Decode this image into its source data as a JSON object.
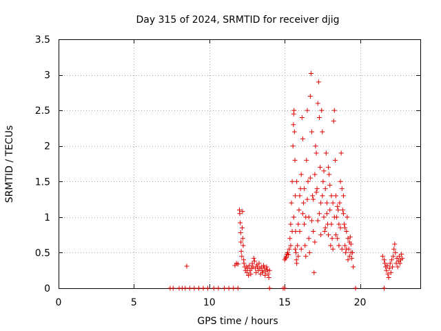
{
  "chart_data": {
    "type": "scatter",
    "title": "Day 315 of 2024, SRMTID for receiver djig",
    "xlabel": "GPS time / hours",
    "ylabel": "SRMTID / TECUs",
    "xlim": [
      0,
      24
    ],
    "ylim": [
      0,
      3.5
    ],
    "xticks": [
      0,
      5,
      10,
      15,
      20
    ],
    "yticks": [
      0,
      0.5,
      1,
      1.5,
      2,
      2.5,
      3,
      3.5
    ],
    "xtick_labels": [
      "0",
      "5",
      "10",
      "15",
      "20"
    ],
    "ytick_labels": [
      "0",
      "0.5",
      "1",
      "1.5",
      "2",
      "2.5",
      "3",
      "3.5"
    ],
    "grid": true,
    "marker": "+",
    "color": "#e00000",
    "series": [
      {
        "name": "SRMTID",
        "points": [
          [
            7.4,
            0
          ],
          [
            7.6,
            0
          ],
          [
            8.0,
            0
          ],
          [
            8.2,
            0
          ],
          [
            8.4,
            0
          ],
          [
            8.7,
            0
          ],
          [
            9.0,
            0
          ],
          [
            9.3,
            0
          ],
          [
            9.6,
            0
          ],
          [
            9.9,
            0
          ],
          [
            10.3,
            0
          ],
          [
            10.6,
            0
          ],
          [
            11.0,
            0
          ],
          [
            11.3,
            0
          ],
          [
            11.6,
            0
          ],
          [
            11.9,
            0
          ],
          [
            14.0,
            0
          ],
          [
            14.9,
            0
          ],
          [
            15.0,
            0
          ],
          [
            19.7,
            0
          ],
          [
            21.6,
            0
          ],
          [
            8.5,
            0.31
          ],
          [
            11.7,
            0.32
          ],
          [
            11.8,
            0.35
          ],
          [
            11.9,
            0.34
          ],
          [
            12.0,
            1.1
          ],
          [
            12.02,
            1.05
          ],
          [
            12.05,
            0.92
          ],
          [
            12.08,
            0.78
          ],
          [
            12.1,
            0.65
          ],
          [
            12.12,
            0.52
          ],
          [
            12.15,
            0.45
          ],
          [
            12.18,
            0.85
          ],
          [
            12.2,
            1.08
          ],
          [
            12.22,
            0.7
          ],
          [
            12.25,
            0.6
          ],
          [
            12.28,
            0.4
          ],
          [
            12.3,
            0.35
          ],
          [
            12.35,
            0.3
          ],
          [
            12.4,
            0.25
          ],
          [
            12.45,
            0.3
          ],
          [
            12.5,
            0.22
          ],
          [
            12.55,
            0.28
          ],
          [
            12.6,
            0.18
          ],
          [
            12.65,
            0.32
          ],
          [
            12.7,
            0.25
          ],
          [
            12.75,
            0.2
          ],
          [
            12.8,
            0.28
          ],
          [
            12.85,
            0.35
          ],
          [
            12.9,
            0.3
          ],
          [
            12.95,
            0.42
          ],
          [
            13.0,
            0.38
          ],
          [
            13.05,
            0.28
          ],
          [
            13.1,
            0.22
          ],
          [
            13.15,
            0.33
          ],
          [
            13.2,
            0.3
          ],
          [
            13.25,
            0.25
          ],
          [
            13.3,
            0.35
          ],
          [
            13.35,
            0.28
          ],
          [
            13.4,
            0.2
          ],
          [
            13.45,
            0.3
          ],
          [
            13.5,
            0.25
          ],
          [
            13.55,
            0.22
          ],
          [
            13.6,
            0.32
          ],
          [
            13.65,
            0.28
          ],
          [
            13.7,
            0.18
          ],
          [
            13.75,
            0.24
          ],
          [
            13.8,
            0.3
          ],
          [
            13.85,
            0.26
          ],
          [
            13.9,
            0.2
          ],
          [
            13.95,
            0.15
          ],
          [
            14.0,
            0.25
          ],
          [
            15.0,
            0.4
          ],
          [
            15.05,
            0.42
          ],
          [
            15.1,
            0.45
          ],
          [
            15.15,
            0.48
          ],
          [
            15.2,
            0.5
          ],
          [
            15.25,
            0.47
          ],
          [
            15.3,
            0.55
          ],
          [
            15.35,
            0.7
          ],
          [
            15.4,
            0.9
          ],
          [
            15.45,
            1.2
          ],
          [
            15.5,
            1.5
          ],
          [
            15.55,
            2.0
          ],
          [
            15.58,
            2.3
          ],
          [
            15.6,
            2.45
          ],
          [
            15.62,
            2.5
          ],
          [
            15.65,
            2.2
          ],
          [
            15.68,
            1.8
          ],
          [
            15.7,
            1.3
          ],
          [
            15.72,
            0.8
          ],
          [
            15.75,
            0.5
          ],
          [
            15.78,
            0.4
          ],
          [
            15.8,
            0.35
          ],
          [
            15.85,
            0.6
          ],
          [
            15.9,
            0.9
          ],
          [
            15.95,
            1.1
          ],
          [
            16.0,
            0.8
          ],
          [
            16.05,
            1.4
          ],
          [
            16.1,
            1.6
          ],
          [
            16.15,
            2.4
          ],
          [
            16.2,
            2.1
          ],
          [
            16.25,
            1.2
          ],
          [
            16.3,
            0.9
          ],
          [
            16.35,
            0.6
          ],
          [
            16.4,
            1.0
          ],
          [
            16.45,
            1.8
          ],
          [
            16.5,
            2.5
          ],
          [
            16.55,
            1.5
          ],
          [
            16.6,
            1.0
          ],
          [
            16.65,
            0.5
          ],
          [
            16.7,
            2.7
          ],
          [
            16.75,
            3.02
          ],
          [
            16.8,
            2.2
          ],
          [
            16.85,
            1.3
          ],
          [
            16.9,
            0.8
          ],
          [
            16.95,
            0.22
          ],
          [
            17.0,
            1.6
          ],
          [
            17.05,
            2.0
          ],
          [
            17.1,
            1.9
          ],
          [
            17.15,
            1.4
          ],
          [
            17.2,
            2.6
          ],
          [
            17.25,
            2.9
          ],
          [
            17.3,
            2.4
          ],
          [
            17.35,
            1.7
          ],
          [
            17.4,
            1.2
          ],
          [
            17.45,
            2.5
          ],
          [
            17.5,
            2.2
          ],
          [
            17.55,
            1.5
          ],
          [
            17.6,
            1.0
          ],
          [
            17.65,
            0.8
          ],
          [
            17.7,
            1.4
          ],
          [
            17.75,
            1.9
          ],
          [
            17.8,
            1.2
          ],
          [
            17.85,
            0.9
          ],
          [
            17.9,
            1.7
          ],
          [
            17.95,
            1.6
          ],
          [
            18.0,
            1.1
          ],
          [
            18.05,
            0.6
          ],
          [
            18.1,
            1.3
          ],
          [
            18.15,
            0.7
          ],
          [
            18.2,
            1.2
          ],
          [
            18.25,
            2.35
          ],
          [
            18.3,
            2.5
          ],
          [
            18.35,
            1.8
          ],
          [
            18.4,
            1.3
          ],
          [
            18.45,
            1.0
          ],
          [
            18.5,
            0.7
          ],
          [
            18.55,
            1.1
          ],
          [
            18.6,
            0.9
          ],
          [
            18.65,
            1.2
          ],
          [
            18.7,
            1.5
          ],
          [
            18.75,
            1.9
          ],
          [
            18.8,
            1.4
          ],
          [
            18.85,
            1.1
          ],
          [
            18.9,
            1.3
          ],
          [
            18.95,
            0.9
          ],
          [
            19.0,
            0.6
          ],
          [
            19.05,
            0.5
          ],
          [
            19.1,
            0.8
          ],
          [
            19.15,
            1.0
          ],
          [
            19.2,
            0.7
          ],
          [
            19.25,
            0.55
          ],
          [
            19.3,
            0.45
          ],
          [
            19.35,
            0.72
          ],
          [
            19.4,
            0.62
          ],
          [
            19.45,
            0.42
          ],
          [
            19.5,
            0.5
          ],
          [
            19.55,
            0.3
          ],
          [
            15.1,
            0.43
          ],
          [
            15.4,
            0.6
          ],
          [
            15.5,
            0.8
          ],
          [
            15.6,
            1.0
          ],
          [
            15.7,
            0.55
          ],
          [
            15.8,
            1.5
          ],
          [
            15.9,
            0.45
          ],
          [
            16.0,
            1.3
          ],
          [
            16.1,
            0.55
          ],
          [
            16.2,
            1.05
          ],
          [
            16.3,
            1.4
          ],
          [
            16.4,
            0.45
          ],
          [
            16.5,
            1.25
          ],
          [
            16.6,
            0.7
          ],
          [
            16.7,
            1.55
          ],
          [
            16.8,
            0.95
          ],
          [
            16.9,
            1.25
          ],
          [
            17.0,
            0.65
          ],
          [
            17.1,
            1.35
          ],
          [
            17.2,
            0.95
          ],
          [
            17.3,
            1.05
          ],
          [
            17.4,
            0.75
          ],
          [
            17.5,
            1.3
          ],
          [
            17.6,
            1.65
          ],
          [
            17.7,
            0.85
          ],
          [
            17.8,
            1.05
          ],
          [
            17.9,
            0.75
          ],
          [
            18.0,
            1.45
          ],
          [
            18.1,
            0.9
          ],
          [
            18.2,
            0.55
          ],
          [
            18.3,
            1.0
          ],
          [
            18.4,
            0.75
          ],
          [
            18.5,
            1.15
          ],
          [
            18.6,
            0.6
          ],
          [
            18.7,
            0.85
          ],
          [
            18.8,
            0.55
          ],
          [
            18.9,
            1.05
          ],
          [
            19.0,
            0.85
          ],
          [
            19.1,
            0.55
          ],
          [
            19.2,
            0.4
          ],
          [
            19.3,
            0.65
          ],
          [
            19.4,
            0.5
          ],
          [
            21.5,
            0.45
          ],
          [
            21.6,
            0.4
          ],
          [
            21.65,
            0.35
          ],
          [
            21.7,
            0.3
          ],
          [
            21.75,
            0.25
          ],
          [
            21.8,
            0.32
          ],
          [
            21.85,
            0.2
          ],
          [
            21.9,
            0.15
          ],
          [
            21.95,
            0.28
          ],
          [
            22.0,
            0.35
          ],
          [
            22.05,
            0.22
          ],
          [
            22.1,
            0.4
          ],
          [
            22.15,
            0.3
          ],
          [
            22.2,
            0.45
          ],
          [
            22.25,
            0.55
          ],
          [
            22.3,
            0.62
          ],
          [
            22.35,
            0.5
          ],
          [
            22.4,
            0.35
          ],
          [
            22.45,
            0.42
          ],
          [
            22.5,
            0.3
          ],
          [
            22.55,
            0.38
          ],
          [
            22.6,
            0.45
          ],
          [
            22.65,
            0.35
          ],
          [
            22.7,
            0.4
          ],
          [
            22.75,
            0.48
          ],
          [
            22.8,
            0.42
          ]
        ]
      }
    ]
  }
}
